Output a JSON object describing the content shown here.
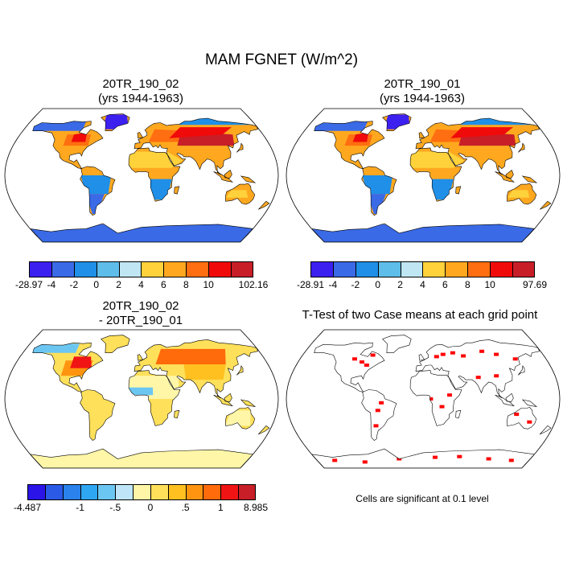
{
  "title": "MAM FGNET (W/m^2)",
  "panels": [
    {
      "id": "p1",
      "title_line1": "20TR_190_02",
      "title_line2": "(yrs 1944-1963)"
    },
    {
      "id": "p2",
      "title_line1": "20TR_190_01",
      "title_line2": "(yrs 1944-1963)"
    },
    {
      "id": "p3",
      "title_line1": "20TR_190_02",
      "title_line2": "- 20TR_190_01"
    },
    {
      "id": "p4",
      "title_line1": "T-Test of two Case means at each grid point"
    }
  ],
  "significance_note": "Cells are significant at 0.1 level",
  "colorbars": {
    "cb1": {
      "colors": [
        "#3c20f0",
        "#3a6ae6",
        "#1f8fe8",
        "#5fbdea",
        "#bfe6f2",
        "#ffd23c",
        "#ffa81f",
        "#ff6e10",
        "#f00a0a",
        "#c81e28"
      ],
      "labels": [
        "-28.97",
        "-4",
        "-2",
        "0",
        "2",
        "4",
        "6",
        "8",
        "10",
        "102.16"
      ]
    },
    "cb2": {
      "colors": [
        "#3c20f0",
        "#3a6ae6",
        "#1f8fe8",
        "#5fbdea",
        "#bfe6f2",
        "#ffd23c",
        "#ffa81f",
        "#ff6e10",
        "#f00a0a",
        "#c81e28"
      ],
      "labels": [
        "-28.91",
        "-4",
        "-2",
        "0",
        "2",
        "4",
        "6",
        "8",
        "10",
        "97.69"
      ]
    },
    "cb3": {
      "colors": [
        "#2a14e8",
        "#2a5ae6",
        "#2a82ec",
        "#2fa6f2",
        "#6cc6f2",
        "#bfe6f8",
        "#fff6a8",
        "#ffe05a",
        "#ffc020",
        "#ff9410",
        "#ff6a0a",
        "#f01414",
        "#c81e28"
      ],
      "labels": [
        "-4.487",
        "-1",
        "-.5",
        "0",
        ".5",
        "1",
        "8.985"
      ],
      "label_edges": [
        0,
        3,
        5,
        7,
        9,
        11,
        13
      ]
    }
  },
  "map_colors": {
    "ocean": "#ffffff",
    "coast": "#000000",
    "significant": "#ff0000"
  }
}
